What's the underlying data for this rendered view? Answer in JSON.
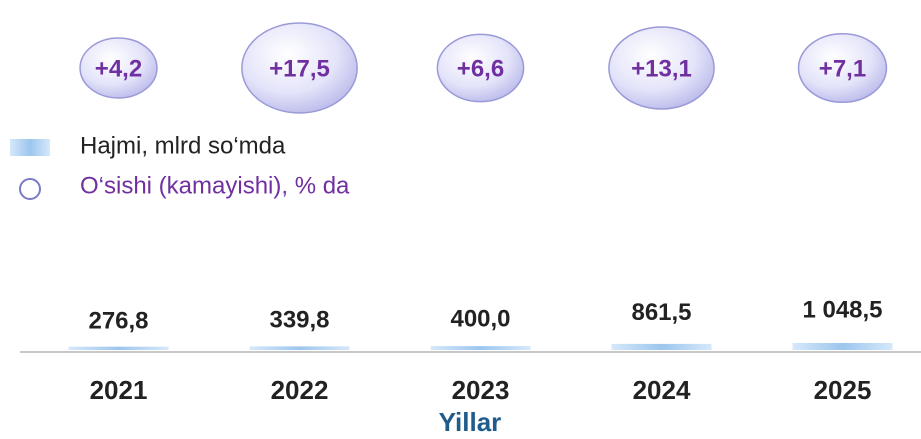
{
  "chart_data": {
    "type": "bar",
    "x_label": "Yillar",
    "categories": [
      "2021",
      "2022",
      "2023",
      "2024",
      "2025"
    ],
    "series": [
      {
        "name": "Hajmi, mlrd so‘mda",
        "color": "#a9cdf0",
        "values": [
          276.8,
          339.8,
          400.0,
          861.5,
          1048.5
        ],
        "value_labels": [
          "276,8",
          "339,8",
          "400,0",
          "861,5",
          "1 048,5"
        ]
      },
      {
        "name": "O‘sishi (kamayishi), % da",
        "color": "#7030a0",
        "values": [
          4.2,
          17.5,
          6.6,
          13.1,
          7.1
        ],
        "value_labels": [
          "+4,2",
          "+17,5",
          "+6,6",
          "+13,1",
          "+7,1"
        ]
      }
    ]
  }
}
